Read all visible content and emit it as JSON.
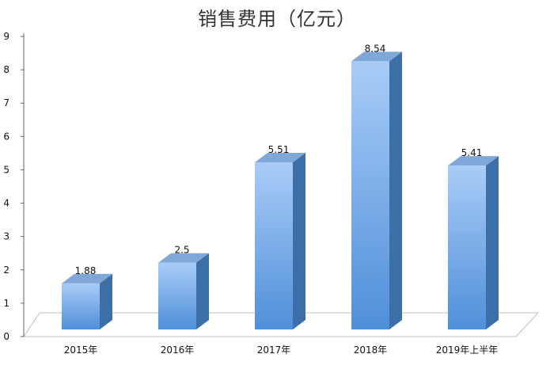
{
  "chart_data": {
    "type": "bar",
    "title": "销售费用（亿元）",
    "xlabel": "",
    "ylabel": "",
    "categories": [
      "2015年",
      "2016年",
      "2017年",
      "2018年",
      "2019年上半年"
    ],
    "values": [
      1.88,
      2.5,
      5.51,
      8.54,
      5.41
    ],
    "data_labels": [
      "1.88",
      "2.5",
      "5.51",
      "8.54",
      "5.41"
    ],
    "ylim": [
      0,
      9
    ],
    "yticks": [
      "0",
      "1",
      "2",
      "3",
      "4",
      "5",
      "6",
      "7",
      "8",
      "9"
    ],
    "grid": false,
    "legend": "none",
    "style": "3d-column",
    "colors": {
      "bar_front_top": "#a9ccf7",
      "bar_front_bottom": "#4f8fd9",
      "bar_side": "#3c6ea8",
      "bar_top": "#7fa8d8",
      "floor": "#ffffff",
      "floor_edge": "#bfbfbf",
      "axis": "#666666"
    }
  }
}
